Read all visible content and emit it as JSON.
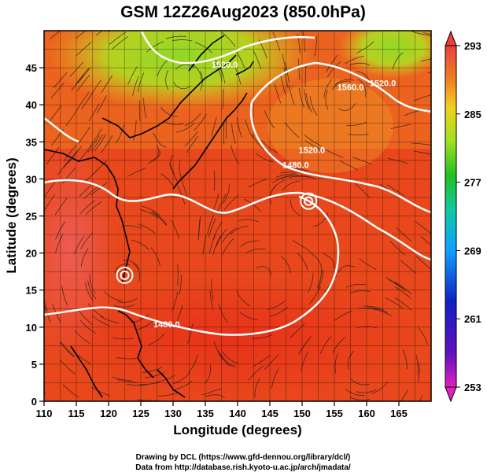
{
  "title": "GSM 12Z26Aug2023 (850.0hPa)",
  "x_axis": {
    "label": "Longitude (degrees)",
    "ticks": [
      110,
      115,
      120,
      125,
      130,
      135,
      140,
      145,
      150,
      155,
      160,
      165
    ],
    "range": [
      110,
      170
    ]
  },
  "y_axis": {
    "label": "Latitude  (degrees)",
    "ticks": [
      0,
      5,
      10,
      15,
      20,
      25,
      30,
      35,
      40,
      45
    ],
    "range": [
      0,
      50
    ]
  },
  "colorbar": {
    "ticks": [
      253,
      261,
      269,
      277,
      285,
      293
    ],
    "min": 253,
    "max": 293
  },
  "contours": [
    {
      "label": "1480.0",
      "lon": 149,
      "lat": 31.5
    },
    {
      "label": "1520.0",
      "lon": 151.5,
      "lat": 33.5
    },
    {
      "label": "1560.0",
      "lon": 157.5,
      "lat": 42
    },
    {
      "label": "1520.0",
      "lon": 162.5,
      "lat": 42.5
    },
    {
      "label": "1520.0",
      "lon": 138,
      "lat": 45
    },
    {
      "label": "1480.0",
      "lon": 129,
      "lat": 10
    }
  ],
  "cyclones": [
    {
      "lon": 151,
      "lat": 27
    },
    {
      "lon": 122.5,
      "lat": 17
    }
  ],
  "credits": {
    "line1": "Drawing by DCL (https://www.gfd-dennou.org/library/dcl/)",
    "line2": "Data from http://database.rish.kyoto-u.ac.jp/arch/jmadata/"
  },
  "colors": {
    "warm": "#e8401c",
    "cool": "#7ed020",
    "contour": "#ffffff"
  }
}
